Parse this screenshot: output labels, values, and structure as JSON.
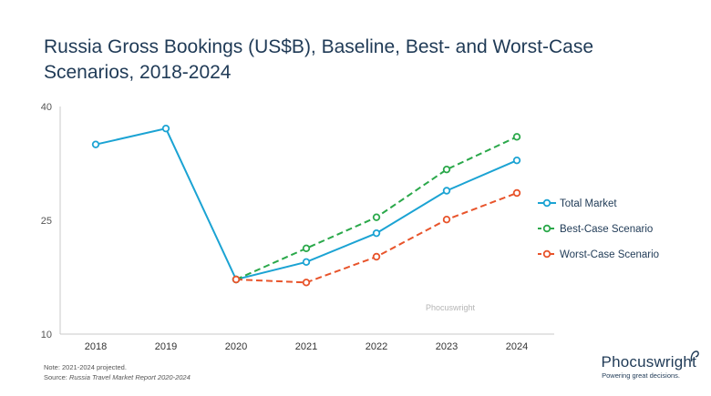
{
  "title": "Russia Gross Bookings (US$B), Baseline, Best- and Worst-Case Scenarios, 2018-2024",
  "watermark": "Phocuswright",
  "notes": {
    "note": "Note: 2021-2024 projected.",
    "source_prefix": "Source: ",
    "source_title": "Russia Travel Market Report 2020-2024"
  },
  "brand": {
    "name": "Phocuswright",
    "tagline": "Powering great decisions."
  },
  "chart_data": {
    "type": "line",
    "categories": [
      "2018",
      "2019",
      "2020",
      "2021",
      "2022",
      "2023",
      "2024"
    ],
    "ylim": [
      10,
      40
    ],
    "yticks": [
      10,
      25,
      40
    ],
    "grid": false,
    "legend_position": "right",
    "series": [
      {
        "name": "Total Market",
        "color": "#1ba3d3",
        "dashed": false,
        "values": [
          35.0,
          37.1,
          17.2,
          19.5,
          23.3,
          28.9,
          32.9
        ]
      },
      {
        "name": "Best-Case Scenario",
        "color": "#2aa84a",
        "dashed": true,
        "values": [
          null,
          null,
          17.2,
          21.3,
          25.4,
          31.7,
          36.0
        ]
      },
      {
        "name": "Worst-Case Scenario",
        "color": "#e8542b",
        "dashed": true,
        "values": [
          null,
          null,
          17.2,
          16.8,
          20.2,
          25.1,
          28.6
        ]
      }
    ]
  }
}
